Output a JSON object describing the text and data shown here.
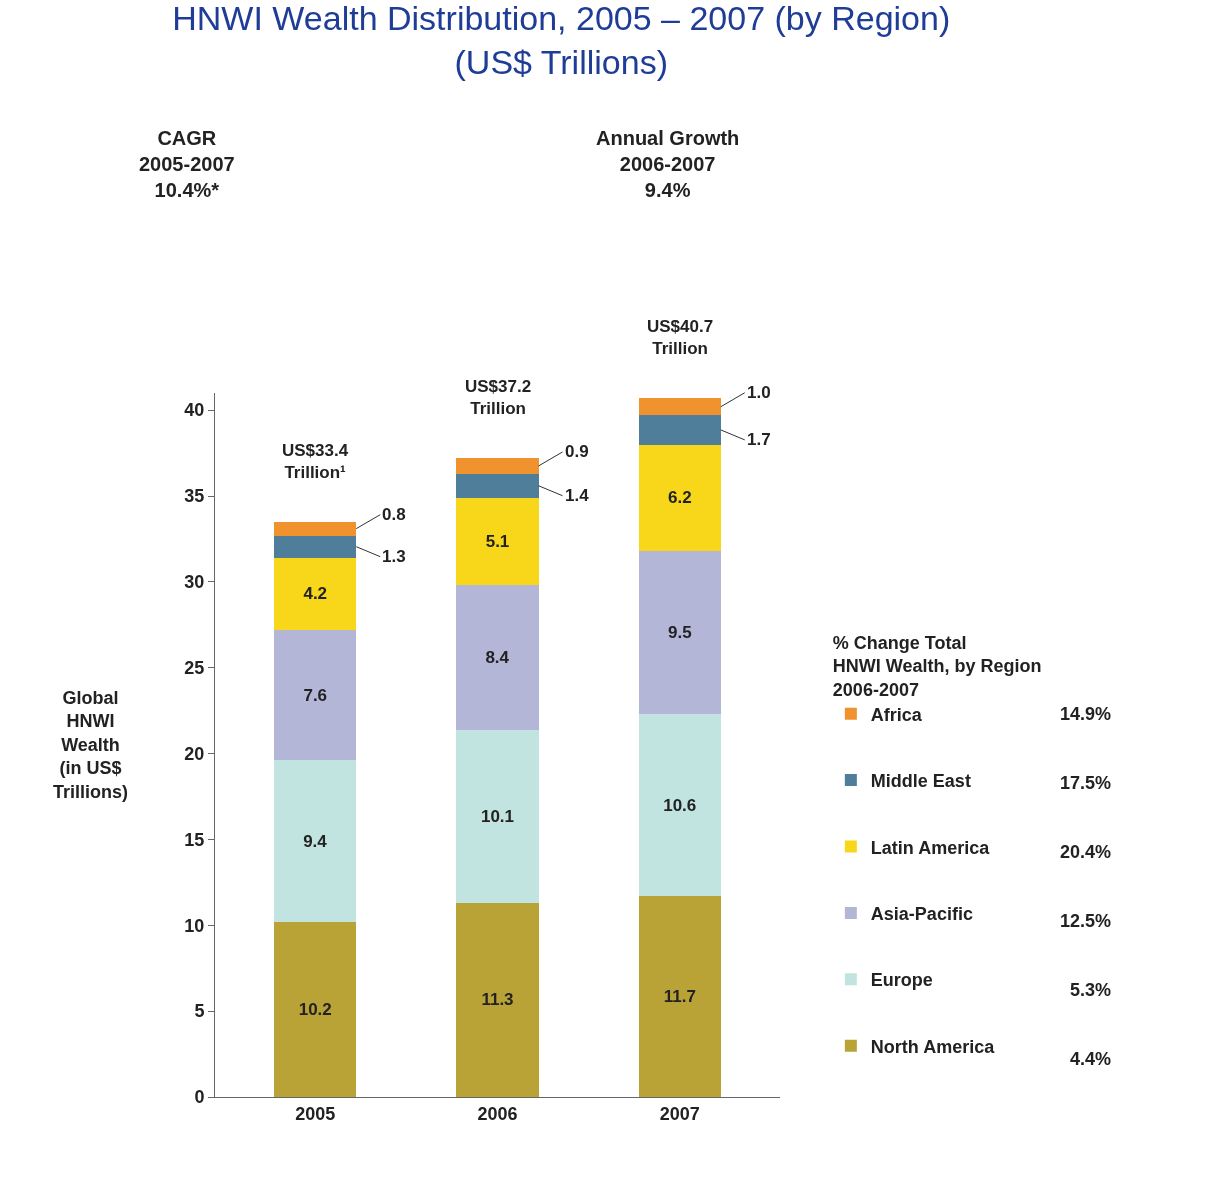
{
  "chart_data": {
    "type": "bar",
    "title": "HNWI Wealth Distribution, 2005 – 2007 (by Region)\n(US$ Trillions)",
    "ylabel": "Global\nHNWI\nWealth\n(in US$\nTrillions)",
    "legend_title": "% Change Total\nHNWI Wealth, by Region\n2006-2007",
    "categories": [
      "2005",
      "2006",
      "2007"
    ],
    "stacked": true,
    "ylim": [
      0,
      41
    ],
    "yticks": [
      0,
      5,
      10,
      15,
      20,
      25,
      30,
      35,
      40
    ],
    "legend": "right",
    "series": [
      {
        "name": "North America",
        "color": "#b9a336",
        "values": [
          10.2,
          11.3,
          11.7
        ],
        "value_labels": [
          "10.2",
          "11.3",
          "11.7"
        ]
      },
      {
        "name": "Europe",
        "color": "#c2e4e0",
        "values": [
          9.4,
          10.1,
          10.6
        ],
        "value_labels": [
          "9.4",
          "10.1",
          "10.6"
        ]
      },
      {
        "name": "Asia-Pacific",
        "color": "#b4b6d8",
        "values": [
          7.6,
          8.4,
          9.5
        ],
        "value_labels": [
          "7.6",
          "8.4",
          "9.5"
        ]
      },
      {
        "name": "Latin America",
        "color": "#f8d61a",
        "values": [
          4.2,
          5.1,
          6.2
        ],
        "value_labels": [
          "4.2",
          "5.1",
          "6.2"
        ]
      },
      {
        "name": "Middle East",
        "color": "#4e7e99",
        "values": [
          1.3,
          1.4,
          1.7
        ],
        "value_labels": [
          "1.3",
          "1.4",
          "1.7"
        ]
      },
      {
        "name": "Africa",
        "color": "#f0922e",
        "values": [
          0.8,
          0.9,
          1.0
        ],
        "value_labels": [
          "0.8",
          "0.9",
          "1.0"
        ]
      }
    ],
    "totals": [
      "US$33.4\nTrillion¹",
      "US$37.2\nTrillion",
      "US$40.7\nTrillion"
    ],
    "annotations": [
      "CAGR\n2005-2007\n10.4%*",
      "Annual Growth\n2006-2007\n9.4%",
      "4.4%",
      "5.3%",
      "12.5%",
      "20.4%",
      "17.5%",
      "14.9%"
    ]
  }
}
